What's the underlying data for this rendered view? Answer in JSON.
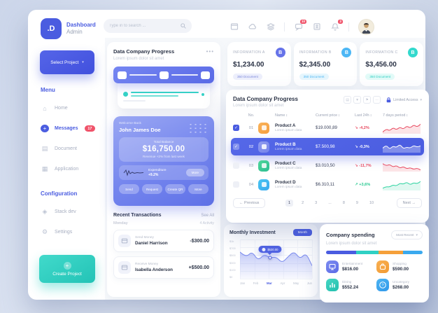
{
  "brand": {
    "logo": ".D",
    "name": "Dashboard",
    "role": "Admin"
  },
  "topbar": {
    "search_placeholder": "Type in to search ...",
    "message_badge": "10",
    "alert_badge": "2"
  },
  "sidebar": {
    "select_project": "Select Project",
    "menu_title": "Menu",
    "menu": [
      {
        "label": "Home",
        "icon": "home-icon",
        "active": false
      },
      {
        "label": "Messages",
        "icon": "messages-icon",
        "active": true,
        "badge": "17"
      },
      {
        "label": "Document",
        "icon": "document-icon",
        "active": false
      },
      {
        "label": "Application",
        "icon": "application-icon",
        "active": false
      }
    ],
    "config_title": "Configuration",
    "config": [
      {
        "label": "Stack dev",
        "icon": "stack-icon",
        "active": false
      },
      {
        "label": "Settings",
        "icon": "settings-icon",
        "active": false
      }
    ],
    "create_project": "Create Project"
  },
  "overview": {
    "title": "Data Company Progress",
    "subtitle": "Lorem ipsum dolor sit amet",
    "welcome": "Welcome Back",
    "user_name": "John James Doe",
    "balance_label": "Total Balance",
    "balance": "$16,750.00",
    "balance_note": "Revenue +2% from last week",
    "expenditure_label": "Expenditure",
    "expenditure_value": "+9.2%",
    "more_label": "More",
    "actions": [
      "Send",
      "Request",
      "Create QR",
      "More"
    ]
  },
  "transactions": {
    "title": "Recent Transactions",
    "see_all": "See All",
    "day": "Monday",
    "activity": "4 Activity",
    "items": [
      {
        "type": "Send Money",
        "name": "Daniel Harrison",
        "amount": "-$300.00"
      },
      {
        "type": "Receive Money",
        "name": "Isabella Anderson",
        "amount": "+$500.00"
      }
    ]
  },
  "info_cards": [
    {
      "label": "INFORMATION A",
      "icon_letter": "B",
      "value": "$1,234.00",
      "badge": "350 Document",
      "accent": "#6673e9",
      "badge_bg": "#edeffc",
      "badge_color": "#7c88dd"
    },
    {
      "label": "INFORMATION B",
      "icon_letter": "B",
      "value": "$2,345.00",
      "badge": "350 Document",
      "accent": "#4db7f5",
      "badge_bg": "#e6f6fd",
      "badge_color": "#4db7f5"
    },
    {
      "label": "INFORMATION C",
      "icon_letter": "B",
      "value": "$3,456.00",
      "badge": "350 Document",
      "accent": "#33d9cd",
      "badge_bg": "#e2fbf8",
      "badge_color": "#2fd0c4"
    }
  ],
  "table": {
    "title": "Data Company Progress",
    "subtitle": "Lorem ipsum dolor sit amet",
    "access_label": "Limited Access",
    "headers": [
      "No.",
      "Name",
      "Current price",
      "Last 24h",
      "7 days period"
    ],
    "rows": [
      {
        "no": "01",
        "name": "Product A",
        "sub": "Lorem ipsum data",
        "price": "$19.000,89",
        "change": "-4,2%",
        "trend": "down",
        "checked": true,
        "selected": false,
        "icon_from": "#f9b35c",
        "icon_to": "#f59e3c",
        "spark": [
          0.15,
          0.45,
          0.25,
          0.55,
          0.35,
          0.6,
          0.4,
          0.7,
          0.5,
          0.8,
          0.6,
          0.85
        ]
      },
      {
        "no": "02",
        "name": "Product B",
        "sub": "Lorem ipsum data",
        "price": "$7.500,98",
        "change": "-0,3%",
        "trend": "down",
        "checked": true,
        "selected": true,
        "icon_from": "rgba(255,255,255,0.35)",
        "icon_to": "rgba(255,255,255,0.2)",
        "spark": [
          0.4,
          0.7,
          0.3,
          0.6,
          0.45,
          0.75,
          0.35,
          0.5,
          0.4,
          0.65,
          0.5,
          0.6
        ]
      },
      {
        "no": "03",
        "name": "Product C",
        "sub": "Lorem ipsum data",
        "price": "$3.010,50",
        "change": "-11,7%",
        "trend": "down",
        "checked": false,
        "selected": false,
        "icon_from": "#4fd79a",
        "icon_to": "#2dbd92",
        "spark": [
          0.7,
          0.5,
          0.65,
          0.4,
          0.55,
          0.3,
          0.45,
          0.25,
          0.35,
          0.2,
          0.3,
          0.15
        ]
      },
      {
        "no": "04",
        "name": "Product D",
        "sub": "Lorem ipsum data",
        "price": "$6.310,11",
        "change": "+3,6%",
        "trend": "up",
        "checked": false,
        "selected": false,
        "icon_from": "#49c5f2",
        "icon_to": "#3aa9ee",
        "spark": [
          0.2,
          0.35,
          0.3,
          0.5,
          0.4,
          0.65,
          0.55,
          0.75,
          0.5,
          0.7,
          0.6,
          0.8
        ]
      }
    ],
    "pagination": {
      "prev": "Previous",
      "next": "Next",
      "active": "1",
      "pages": [
        "1",
        "2",
        "3",
        "...",
        "8",
        "9",
        "10"
      ]
    }
  },
  "investment": {
    "title": "Monthly Investment",
    "period": "Month"
  },
  "chart_data": {
    "type": "area",
    "title": "Monthly Investment",
    "x_labels": [
      "Jan",
      "Feb",
      "Mar",
      "Apr",
      "May",
      "Jun"
    ],
    "highlighted_x": "Mar",
    "y_tick_labels": [
      "$1k",
      "$700",
      "$500",
      "$300",
      "$100",
      "$0"
    ],
    "ylim": [
      0,
      1000
    ],
    "values": [
      680,
      540,
      700,
      460,
      620,
      530,
      560,
      400,
      560,
      700,
      500,
      660,
      330
    ],
    "tooltip": {
      "value": "$530.00",
      "index": 5
    },
    "legend": "none",
    "grid": "on"
  },
  "spending": {
    "title": "Company spending",
    "subtitle": "Lorem ipsum dolor sit amet",
    "filter": "Most Recent",
    "segments": [
      {
        "color": "#4a5ce0",
        "pct": 31
      },
      {
        "color": "#2fd0c4",
        "pct": 23
      },
      {
        "color": "#f5a03a",
        "pct": 26
      },
      {
        "color": "#3aa9ee",
        "pct": 20
      }
    ],
    "items": [
      {
        "label": "Entertainment",
        "amount": "$816.00",
        "icon": "monitor-icon",
        "icon_from": "#7d8cf0",
        "icon_to": "#5b6ae6"
      },
      {
        "label": "Shopping",
        "amount": "$590.00",
        "icon": "bag-icon",
        "icon_from": "#f8b053",
        "icon_to": "#f29a32"
      },
      {
        "label": "Dining",
        "amount": "$552.24",
        "icon": "chart-bars-icon",
        "icon_from": "#45d6c3",
        "icon_to": "#22bfae"
      },
      {
        "label": "Uncategory",
        "amount": "$268.00",
        "icon": "question-icon",
        "icon_from": "#4db4f2",
        "icon_to": "#2f98ea"
      }
    ]
  }
}
